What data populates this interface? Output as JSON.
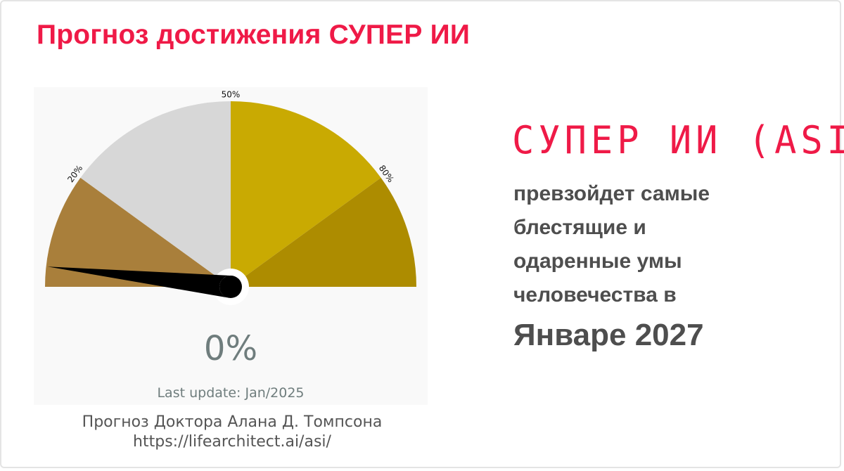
{
  "page": {
    "title": "Прогноз достижения СУПЕР ИИ"
  },
  "chart_data": {
    "type": "gauge",
    "value_label": "0%",
    "value": 0,
    "range": [
      0,
      100
    ],
    "tick_labels": [
      {
        "label": "20%",
        "value": 20
      },
      {
        "label": "50%",
        "value": 50
      },
      {
        "label": "80%",
        "value": 80
      }
    ],
    "segments": [
      {
        "from": 0,
        "to": 20,
        "color": "#a97f3b"
      },
      {
        "from": 20,
        "to": 50,
        "color": "#d7d7d7"
      },
      {
        "from": 50,
        "to": 80,
        "color": "#c9aa02"
      },
      {
        "from": 80,
        "to": 100,
        "color": "#ad8c00"
      }
    ],
    "last_update": "Last update: Jan/2025"
  },
  "credit": {
    "author": "Прогноз Доктора Алана Д. Томпсона",
    "url": "https://lifearchitect.ai/asi/"
  },
  "callout": {
    "heading": "СУПЕР ИИ (ASI)",
    "lines": [
      "превзойдет самые",
      "блестящие и",
      "одаренные умы",
      "человечества в"
    ],
    "date": "Январе 2027"
  },
  "colors": {
    "accent": "#ef1a47",
    "text_dark": "#4e4e4e",
    "gauge_text": "#6f7d7d"
  }
}
